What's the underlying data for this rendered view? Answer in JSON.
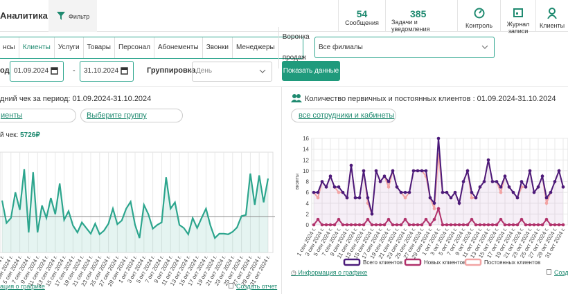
{
  "header": {
    "title": "Аналитика",
    "filter": "Фильтр",
    "stats": [
      {
        "value": "54",
        "label": "Сообщения"
      },
      {
        "value": "385",
        "label": "Задачи и уведомления"
      }
    ],
    "nav": [
      "Контроль",
      "Журнал записи",
      "Клиенты"
    ]
  },
  "tabs": {
    "items": [
      "нсы",
      "Клиенты",
      "Услуги",
      "Товары",
      "Персонал",
      "Абонементы",
      "Звонки",
      "Менеджеры",
      "Воронка продаж"
    ],
    "active": 1
  },
  "branch": "Все филиалы",
  "period": {
    "label": "од",
    "from": "01.09.2024",
    "dash": "-",
    "to": "31.10.2024",
    "grouping_label": "Группировка",
    "grouping": "День",
    "button": "Показать данные"
  },
  "left_panel": {
    "filter1": "иенты",
    "filter2": "Выберите группу",
    "summary_label": "й чек:",
    "footer_info": "ация о графике",
    "footer_report": "Создать отчет"
  },
  "right_panel": {
    "filter": "все сотрудники и кабинеты",
    "footer_info": "Информация о графике",
    "footer_report": "Созда"
  },
  "chart_data": [
    {
      "type": "line",
      "title": "дний чек за период: 01.09.2024-31.10.2024",
      "area": true,
      "color": "#2ca58d",
      "ylim": [
        0,
        16000
      ],
      "average": {
        "value": 5726,
        "label": "5726₽"
      },
      "categories": [
        "1 сен 2024 г.",
        null,
        "3 сен 2024 г.",
        null,
        "5 сен 2024 г.",
        null,
        "7 сен 2024 г.",
        null,
        "9 сен 2024 г.",
        null,
        "11 сен 2024 г.",
        null,
        "13 сен 2024 г.",
        null,
        "15 сен 2024 г.",
        null,
        "17 сен 2024 г.",
        null,
        "19 сен 2024 г.",
        null,
        "21 сен 2024 г.",
        null,
        "23 сен 2024 г.",
        null,
        "25 сен 2024 г.",
        null,
        "27 сен 2024 г.",
        null,
        "29 сен 2024 г.",
        null,
        "1 окт 2024 г.",
        null,
        "3 окт 2024 г.",
        null,
        "5 окт 2024 г.",
        null,
        "7 окт 2024 г.",
        null,
        "9 окт 2024 г.",
        null,
        "11 окт 2024 г.",
        null,
        "13 окт 2024 г.",
        null,
        "15 окт 2024 г.",
        null,
        "17 окт 2024 г.",
        null,
        "19 окт 2024 г.",
        null,
        "21 окт 2024 г.",
        null,
        "23 окт 2024 г.",
        null,
        "25 окт 2024 г.",
        null,
        "27 окт 2024 г.",
        null,
        "29 окт 2024 г.",
        null,
        "31 окт 2024 г."
      ],
      "values": [
        8300,
        4700,
        5500,
        9600,
        6800,
        13300,
        3200,
        12800,
        3200,
        7500,
        5500,
        8700,
        6100,
        11000,
        5200,
        6600,
        4300,
        3200,
        4800,
        3900,
        3000,
        4600,
        2900,
        3500,
        4600,
        7000,
        4500,
        5100,
        7000,
        8100,
        4400,
        2300,
        7600,
        6100,
        3800,
        4400,
        4800,
        12000,
        7000,
        8000,
        4400,
        3900,
        2900,
        5500,
        3900,
        5500,
        7000,
        4300,
        2300,
        3000,
        3000,
        2900,
        3300,
        4000,
        5800,
        6000,
        12600,
        7600,
        12300,
        8000,
        11800
      ]
    },
    {
      "type": "line",
      "title": "Количество первичных и постоянных клиентов : 01.09.2024-31.10.2024",
      "ylabel": "визиты",
      "area": true,
      "grid": true,
      "ylim": [
        0,
        16
      ],
      "yticks": [
        0,
        2,
        4,
        6,
        8,
        10,
        12,
        14,
        16
      ],
      "categories": [
        "1 сен 2024 г.",
        null,
        "3 сен 2024 г.",
        null,
        "5 сен 2024 г.",
        null,
        "7 сен 2024 г.",
        null,
        "9 сен 2024 г.",
        null,
        "11 сен 2024 г.",
        null,
        "13 сен 2024 г.",
        null,
        "15 сен 2024 г.",
        null,
        "17 сен 2024 г.",
        null,
        "19 сен 2024 г.",
        null,
        "21 сен 2024 г.",
        null,
        "23 сен 2024 г.",
        null,
        "25 сен 2024 г.",
        null,
        "27 сен 2024 г.",
        null,
        "29 сен 2024 г.",
        null,
        "1 окт 2024 г.",
        null,
        "3 окт 2024 г.",
        null,
        "5 окт 2024 г.",
        null,
        "7 окт 2024 г.",
        null,
        "9 окт 2024 г.",
        null,
        "11 окт 2024 г.",
        null,
        "13 окт 2024 г.",
        null,
        "15 окт 2024 г.",
        null,
        "17 окт 2024 г.",
        null,
        "19 окт 2024 г.",
        null,
        "21 окт 2024 г.",
        null,
        "23 окт 2024 г.",
        null,
        "25 окт 2024 г.",
        null,
        "27 окт 2024 г.",
        null,
        "29 окт 2024 г.",
        null,
        "31 окт 2024 г."
      ],
      "series": [
        {
          "name": "Всего клиентов",
          "color": "#4b1a7a",
          "values": [
            6,
            6,
            8,
            7,
            9,
            7,
            7,
            6,
            5,
            11,
            5,
            5,
            10,
            5,
            2,
            10,
            8,
            9,
            8,
            10,
            7,
            6,
            6,
            6,
            10,
            10,
            10,
            10,
            5,
            4,
            16,
            6,
            6,
            5,
            6,
            4,
            8,
            10,
            6,
            5,
            7,
            8,
            12,
            8,
            8,
            7,
            9,
            7,
            6,
            5,
            8,
            7,
            10,
            6,
            7,
            9,
            5,
            6,
            8,
            10,
            7
          ]
        },
        {
          "name": "Новых клиентов",
          "color": "#b0306a",
          "values": [
            0,
            1,
            0,
            0,
            0,
            0,
            1,
            0,
            0,
            0,
            0,
            0,
            0,
            1,
            0,
            0,
            0,
            0,
            1,
            0,
            0,
            0,
            1,
            0,
            0,
            0,
            0,
            1,
            0,
            1,
            3,
            0,
            0,
            0,
            0,
            0,
            0,
            0,
            1,
            0,
            0,
            0,
            0,
            0,
            0,
            1,
            0,
            0,
            0,
            0,
            1,
            0,
            0,
            0,
            0,
            0,
            1,
            0,
            0,
            0,
            0
          ]
        },
        {
          "name": "Постоянных клиентов",
          "color": "#f2a3a3",
          "values": [
            6,
            5,
            8,
            7,
            9,
            7,
            6,
            6,
            5,
            11,
            5,
            5,
            10,
            4,
            2,
            10,
            8,
            9,
            7,
            10,
            7,
            6,
            5,
            6,
            10,
            10,
            10,
            9,
            5,
            3,
            13,
            6,
            6,
            5,
            6,
            4,
            8,
            10,
            5,
            5,
            7,
            8,
            12,
            8,
            8,
            6,
            9,
            7,
            6,
            5,
            7,
            7,
            10,
            6,
            7,
            9,
            4,
            6,
            8,
            10,
            7
          ]
        }
      ]
    }
  ]
}
